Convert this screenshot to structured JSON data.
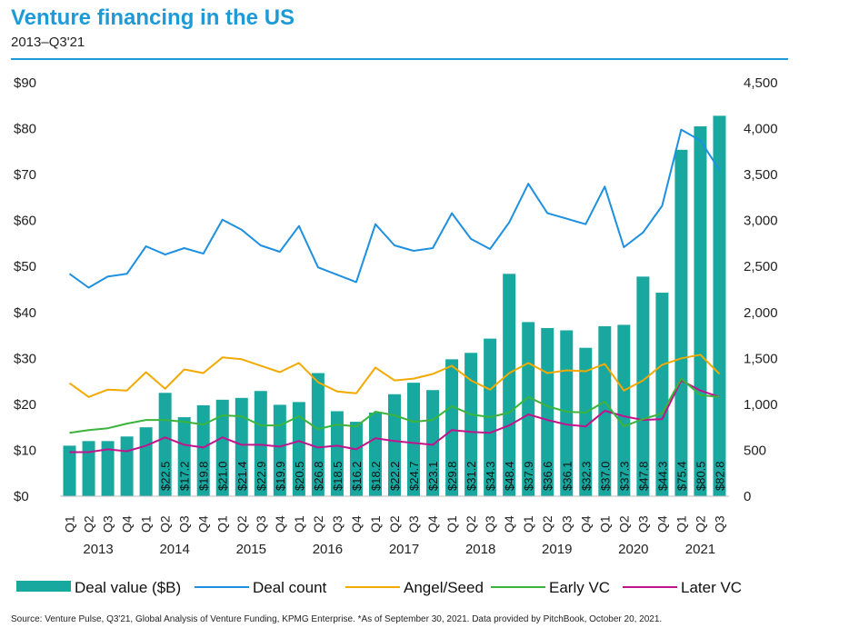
{
  "header": {
    "title": "Venture financing in the US",
    "subtitle": "2013–Q3'21"
  },
  "footer": {
    "source": "Source: Venture Pulse, Q3'21, Global Analysis of Venture Funding, KPMG Enterprise. *As of September 30, 2021. Data provided by PitchBook, October 20, 2021."
  },
  "colors": {
    "bars": "#18a8a0",
    "deal_count": "#1e90e0",
    "angel_seed": "#f2a900",
    "early_vc": "#3cb43c",
    "later_vc": "#c0148c",
    "axis_text": "#222222"
  },
  "chart_data": {
    "type": "bar",
    "title": "Venture financing in the US",
    "subtitle": "2013–Q3'21",
    "categories": [
      "Q1",
      "Q2",
      "Q3",
      "Q4",
      "Q1",
      "Q2",
      "Q3",
      "Q4",
      "Q1",
      "Q2",
      "Q3",
      "Q4",
      "Q1",
      "Q2",
      "Q3",
      "Q4",
      "Q1",
      "Q2",
      "Q3",
      "Q4",
      "Q1",
      "Q2",
      "Q3",
      "Q4",
      "Q1",
      "Q2",
      "Q3",
      "Q4",
      "Q1",
      "Q2",
      "Q3",
      "Q4",
      "Q1",
      "Q2",
      "Q3"
    ],
    "years": [
      {
        "label": "2013",
        "from": 0,
        "to": 3
      },
      {
        "label": "2014",
        "from": 4,
        "to": 7
      },
      {
        "label": "2015",
        "from": 8,
        "to": 11
      },
      {
        "label": "2016",
        "from": 12,
        "to": 15
      },
      {
        "label": "2017",
        "from": 16,
        "to": 19
      },
      {
        "label": "2018",
        "from": 20,
        "to": 23
      },
      {
        "label": "2019",
        "from": 24,
        "to": 27
      },
      {
        "label": "2020",
        "from": 28,
        "to": 31
      },
      {
        "label": "2021",
        "from": 32,
        "to": 34
      }
    ],
    "y_left": {
      "ticks": [
        "$0",
        "$10",
        "$20",
        "$30",
        "$40",
        "$50",
        "$60",
        "$70",
        "$80",
        "$90"
      ],
      "ylim": [
        0,
        90
      ]
    },
    "y_right": {
      "ticks": [
        "0",
        "500",
        "1,000",
        "1,500",
        "2,000",
        "2,500",
        "3,000",
        "3,500",
        "4,000",
        "4,500"
      ],
      "ylim": [
        0,
        4500
      ]
    },
    "bar_series": {
      "name": "Deal value ($B)",
      "values": [
        11.0,
        12.0,
        12.0,
        13.0,
        15.0,
        22.5,
        17.2,
        19.8,
        21.0,
        21.4,
        22.9,
        19.9,
        20.5,
        26.8,
        18.5,
        16.2,
        18.2,
        22.2,
        24.7,
        23.1,
        29.8,
        31.2,
        34.3,
        48.4,
        37.9,
        36.6,
        36.1,
        32.3,
        37.0,
        37.3,
        47.8,
        44.3,
        75.4,
        80.5,
        82.8
      ],
      "labels": [
        "",
        "",
        "",
        "",
        "",
        "$22.5",
        "$17.2",
        "$19.8",
        "$21.0",
        "$21.4",
        "$22.9",
        "$19.9",
        "$20.5",
        "$26.8",
        "$18.5",
        "$16.2",
        "$18.2",
        "$22.2",
        "$24.7",
        "$23.1",
        "$29.8",
        "$31.2",
        "$34.3",
        "$48.4",
        "$37.9",
        "$36.6",
        "$36.1",
        "$32.3",
        "$37.0",
        "$37.3",
        "$47.8",
        "$44.3",
        "$75.4",
        "$80.5",
        "$82.8"
      ]
    },
    "line_series": [
      {
        "name": "Deal count",
        "color_key": "deal_count",
        "values": [
          2420,
          2270,
          2390,
          2420,
          2720,
          2630,
          2700,
          2640,
          3010,
          2900,
          2730,
          2660,
          2940,
          2490,
          2410,
          2330,
          2960,
          2730,
          2670,
          2700,
          3080,
          2800,
          2690,
          2980,
          3400,
          3080,
          3020,
          2960,
          3370,
          2710,
          2870,
          3160,
          3990,
          3870,
          3550
        ]
      },
      {
        "name": "Angel/Seed",
        "color_key": "angel_seed",
        "values": [
          1230,
          1080,
          1160,
          1150,
          1350,
          1170,
          1380,
          1340,
          1510,
          1490,
          1420,
          1350,
          1450,
          1240,
          1140,
          1120,
          1400,
          1260,
          1280,
          1330,
          1420,
          1260,
          1160,
          1340,
          1450,
          1340,
          1370,
          1360,
          1440,
          1150,
          1260,
          1430,
          1500,
          1540,
          1330
        ]
      },
      {
        "name": "Early VC",
        "color_key": "early_vc",
        "values": [
          690,
          720,
          740,
          790,
          830,
          830,
          810,
          780,
          880,
          870,
          770,
          770,
          870,
          730,
          780,
          760,
          920,
          880,
          810,
          830,
          980,
          890,
          860,
          910,
          1080,
          980,
          920,
          910,
          1030,
          760,
          840,
          900,
          1280,
          1100,
          1080
        ]
      },
      {
        "name": "Later VC",
        "color_key": "later_vc",
        "values": [
          480,
          480,
          510,
          490,
          550,
          640,
          560,
          530,
          640,
          560,
          560,
          540,
          600,
          530,
          550,
          510,
          630,
          600,
          580,
          560,
          720,
          700,
          690,
          770,
          890,
          830,
          780,
          760,
          930,
          870,
          830,
          840,
          1260,
          1150,
          1080
        ]
      }
    ],
    "legend": {
      "placement": "bottom",
      "entries": [
        "Deal value ($B)",
        "Deal count",
        "Angel/Seed",
        "Early VC",
        "Later VC"
      ]
    },
    "grid": false
  }
}
